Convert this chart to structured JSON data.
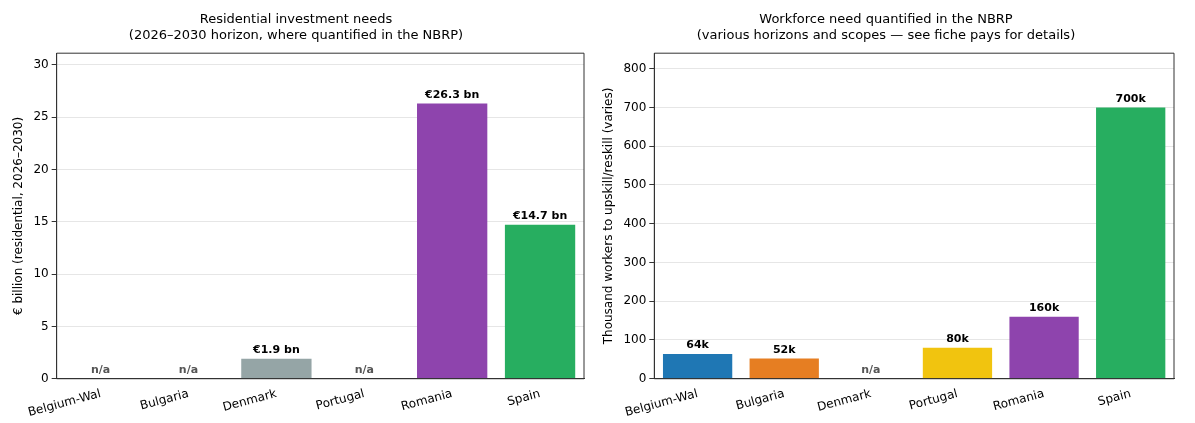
{
  "chart_data": [
    {
      "type": "bar",
      "title": "Residential investment needs\n(2026–2030 horizon, where quantified in the NBRP)",
      "ylabel": "€ billion (residential, 2026–2030)",
      "categories": [
        "Belgium-Wal",
        "Bulgaria",
        "Denmark",
        "Portugal",
        "Romania",
        "Spain"
      ],
      "values": [
        null,
        null,
        1.9,
        null,
        26.3,
        14.7
      ],
      "colors": [
        "#1f77b4",
        "#e67e22",
        "#95a5a6",
        "#f1c40f",
        "#8e44ad",
        "#27ae60"
      ],
      "value_labels": [
        "n/a",
        "n/a",
        "€1.9 bn",
        "n/a",
        "€26.3 bn",
        "€14.7 bn"
      ],
      "ylim": [
        0,
        31.1
      ],
      "yticks": [
        0,
        5,
        10,
        15,
        20,
        25,
        30
      ],
      "grid": "y",
      "legend": false
    },
    {
      "type": "bar",
      "title": "Workforce need quantified in the NBRP\n(various horizons and scopes — see fiche pays for details)",
      "ylabel": "Thousand workers to upskill/reskill (varies)",
      "categories": [
        "Belgium-Wal",
        "Bulgaria",
        "Denmark",
        "Portugal",
        "Romania",
        "Spain"
      ],
      "values": [
        64,
        52,
        null,
        80,
        160,
        700
      ],
      "colors": [
        "#1f77b4",
        "#e67e22",
        "#95a5a6",
        "#f1c40f",
        "#8e44ad",
        "#27ae60"
      ],
      "value_labels": [
        "64k",
        "52k",
        "n/a",
        "80k",
        "160k",
        "700k"
      ],
      "ylim": [
        0,
        840
      ],
      "yticks": [
        0,
        100,
        200,
        300,
        400,
        500,
        600,
        700,
        800
      ],
      "grid": "y",
      "legend": false
    }
  ]
}
